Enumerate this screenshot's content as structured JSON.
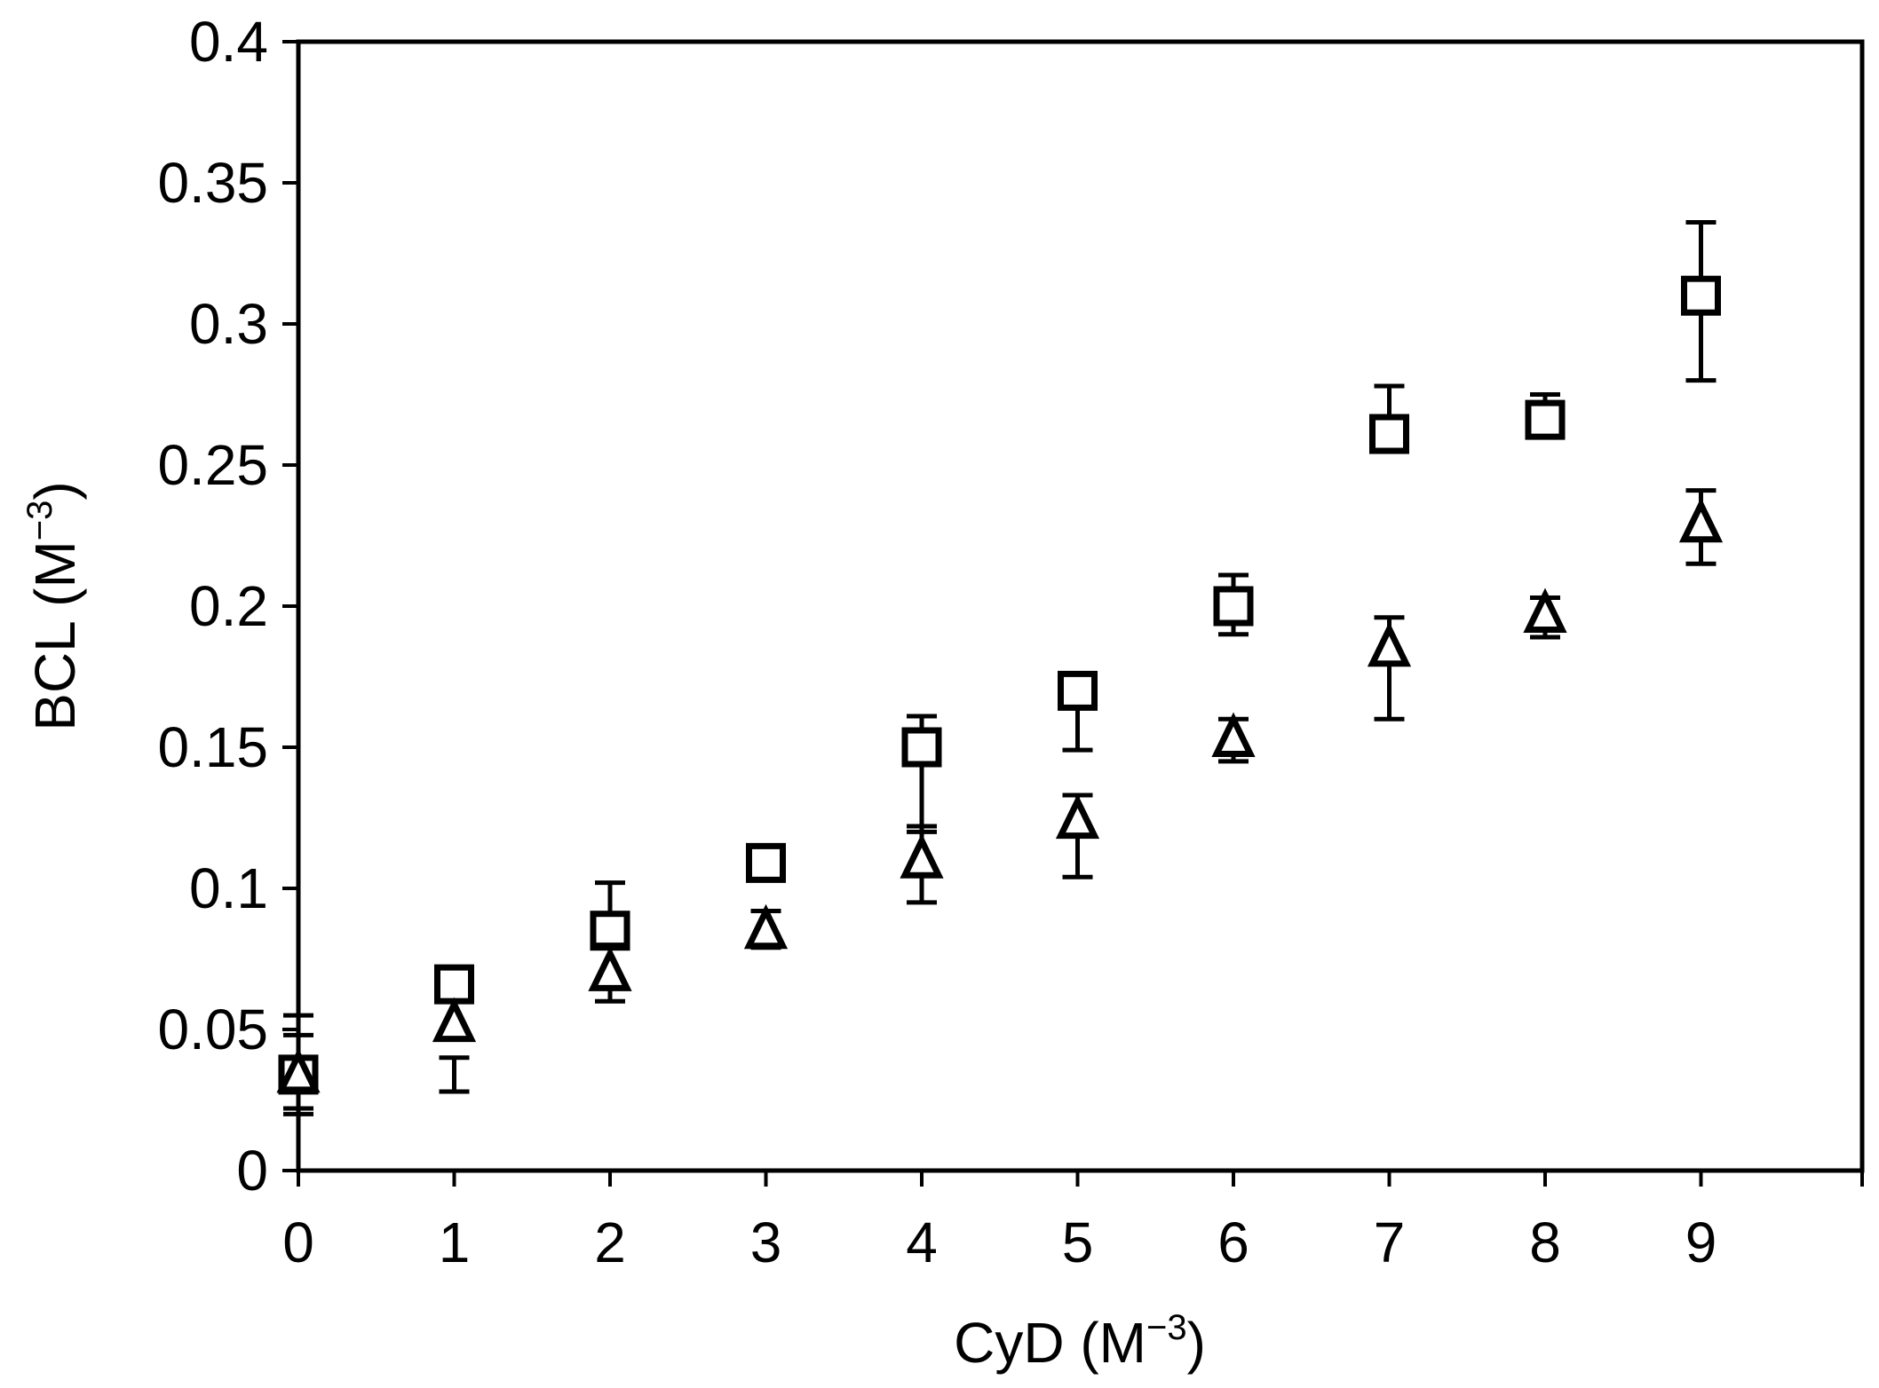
{
  "chart_data": {
    "type": "scatter",
    "xlabel": "CyD (M⁻³)",
    "xlabel_base": "CyD (M",
    "xlabel_exp": "−3",
    "xlabel_tail": ")",
    "ylabel": "BCL (M⁻³)",
    "ylabel_base": "BCL (M",
    "ylabel_exp": "−3",
    "ylabel_tail": ")",
    "xlim": [
      0,
      10
    ],
    "ylim": [
      0,
      0.4
    ],
    "x_ticks": [
      0,
      1,
      2,
      3,
      4,
      5,
      6,
      7,
      8,
      9
    ],
    "x_tick_labels": [
      "0",
      "1",
      "2",
      "3",
      "4",
      "5",
      "6",
      "7",
      "8",
      "9"
    ],
    "y_ticks": [
      0,
      0.05,
      0.1,
      0.15,
      0.2,
      0.25,
      0.3,
      0.35,
      0.4
    ],
    "y_tick_labels": [
      "0",
      "0.05",
      "0.1",
      "0.15",
      "0.2",
      "0.25",
      "0.3",
      "0.35",
      "0.4"
    ],
    "grid": false,
    "legend": "none",
    "series": [
      {
        "marker": "square",
        "x": [
          0,
          1,
          2,
          3,
          4,
          5,
          6,
          7,
          8,
          9
        ],
        "y": [
          0.034,
          0.066,
          0.085,
          0.109,
          0.15,
          0.17,
          0.2,
          0.261,
          0.266,
          0.31
        ],
        "err_low": [
          0.02,
          0.063,
          0.066,
          0.105,
          0.12,
          0.149,
          0.19,
          0.256,
          0.262,
          0.28
        ],
        "err_high": [
          0.055,
          0.068,
          0.102,
          0.112,
          0.161,
          0.173,
          0.211,
          0.278,
          0.275,
          0.336
        ]
      },
      {
        "marker": "triangle",
        "x": [
          0,
          1,
          2,
          3,
          4,
          5,
          6,
          7,
          8,
          9
        ],
        "y": [
          0.034,
          0.052,
          0.07,
          0.085,
          0.11,
          0.124,
          0.153,
          0.185,
          0.197,
          0.229
        ],
        "err_low": [
          0.022,
          0.028,
          0.06,
          0.079,
          0.095,
          0.104,
          0.145,
          0.16,
          0.189,
          0.215
        ],
        "err_high": [
          0.048,
          0.04,
          0.08,
          0.092,
          0.122,
          0.133,
          0.16,
          0.196,
          0.203,
          0.241
        ]
      }
    ]
  }
}
